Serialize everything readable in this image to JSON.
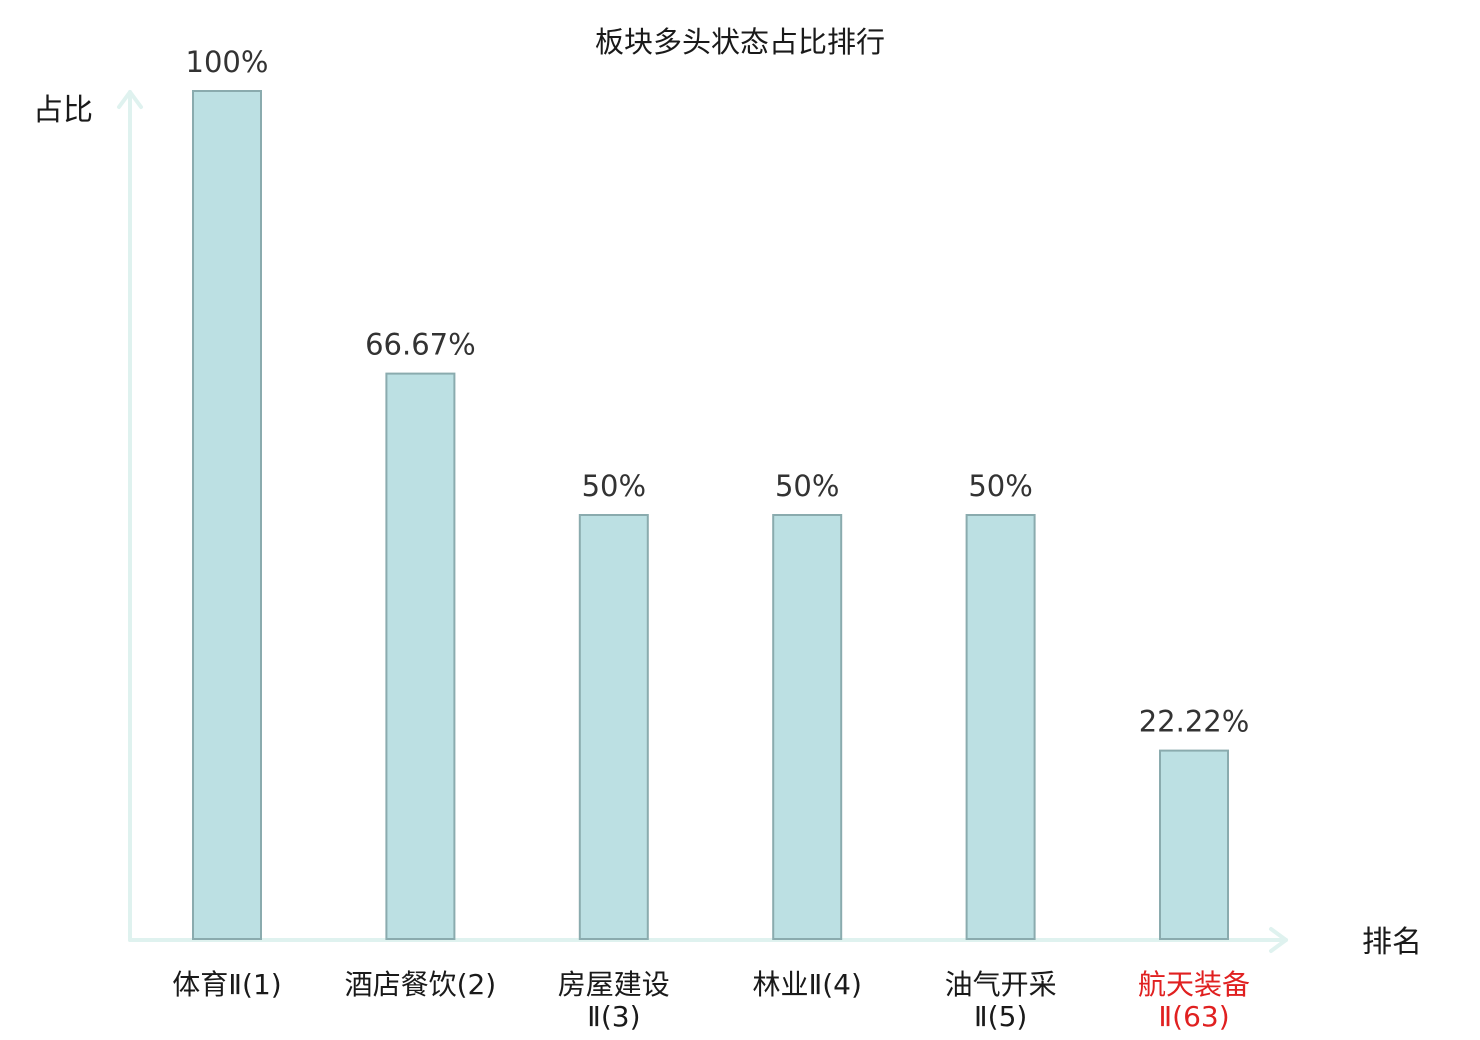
{
  "chart_data": {
    "type": "bar",
    "title": "板块多头状态占比排行",
    "ylabel": "占比",
    "xlabel": "排名",
    "ylim": [
      0,
      100
    ],
    "value_suffix": "%",
    "categories": [
      {
        "lines": [
          "体育Ⅱ(1)"
        ],
        "highlight": false
      },
      {
        "lines": [
          "酒店餐饮(2)"
        ],
        "highlight": false
      },
      {
        "lines": [
          "房屋建设",
          "Ⅱ(3)"
        ],
        "highlight": false
      },
      {
        "lines": [
          "林业Ⅱ(4)"
        ],
        "highlight": false
      },
      {
        "lines": [
          "油气开采",
          "Ⅱ(5)"
        ],
        "highlight": false
      },
      {
        "lines": [
          "航天装备",
          "Ⅱ(63)"
        ],
        "highlight": true
      }
    ],
    "values": [
      100,
      66.67,
      50,
      50,
      50,
      22.22
    ],
    "value_labels": [
      "100%",
      "66.67%",
      "50%",
      "50%",
      "50%",
      "22.22%"
    ],
    "grid": false,
    "legend": "none"
  },
  "colors": {
    "bar_fill": "#bce0e3",
    "bar_stroke": "#8aabae",
    "axis": "#dff2ef",
    "highlight_text": "#e02020",
    "text": "#1a1a1a",
    "value_text": "#333333"
  }
}
